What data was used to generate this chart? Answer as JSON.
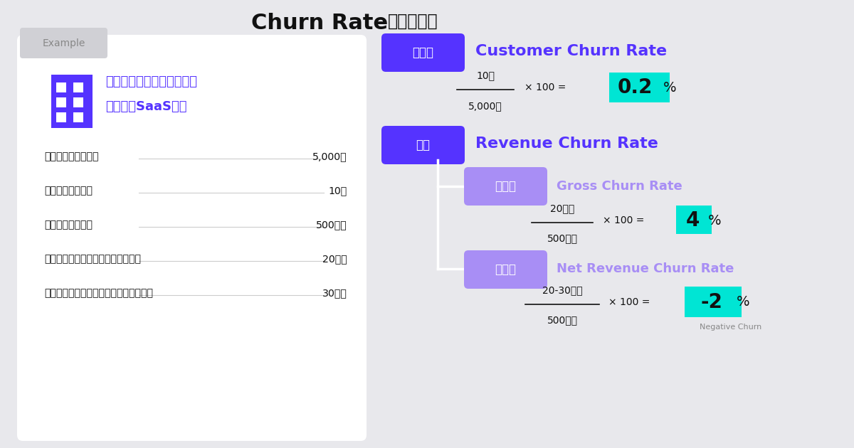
{
  "bg_color": "#e8e8ec",
  "title_main": "Churn Rate",
  "title_sub": "（解約率）",
  "example_label": "Example",
  "company_text_line1": "クラウド型会計システムを",
  "company_text_line2": "提供するSaaS企業",
  "bullet_items": [
    {
      "label": "・前月の利用顧客数",
      "value": "5,000人"
    },
    {
      "label": "・今月の解約人数",
      "value": "10人"
    },
    {
      "label": "・前月の経常収益",
      "value": "500万円"
    },
    {
      "label": "・解約やダウングレードによる損失",
      "value": "20万円"
    },
    {
      "label": "・既存顧客のアップグレードによる増収",
      "value": "30万円"
    }
  ],
  "purple_dark": "#5533ff",
  "purple_light": "#a88ef5",
  "cyan_highlight": "#00e5d4",
  "tag_kyakusu": "顧客数",
  "tag_kingaku": "金額",
  "tag_sonshitsu": "損失額",
  "tag_zogens": "増減額",
  "ccr_title": "Customer Churn Rate",
  "ccr_num": "10人",
  "ccr_den": "5,000人",
  "ccr_result": "0.2",
  "rcr_title": "Revenue Churn Rate",
  "gcr_title": "Gross Churn Rate",
  "gcr_num": "20万円",
  "gcr_den": "500万円",
  "gcr_result": "4",
  "ncr_title": "Net Revenue Churn Rate",
  "ncr_num": "20-30万円",
  "ncr_den": "500万円",
  "ncr_result": "-2",
  "negative_churn_label": "Negative Churn"
}
